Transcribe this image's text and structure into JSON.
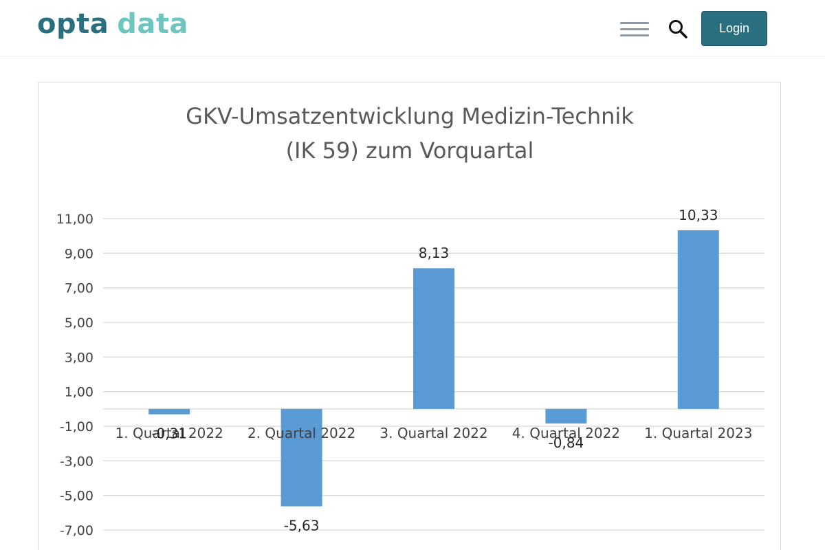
{
  "header": {
    "logo_word_1": "opta",
    "logo_word_2": "data",
    "login_label": "Login"
  },
  "icons": {
    "menu": "hamburger-menu-icon",
    "search": "search-icon"
  },
  "colors": {
    "brand_dark": "#2a6f7f",
    "brand_light": "#6cc6bf",
    "bar": "#5b9bd5"
  },
  "chart_data": {
    "type": "bar",
    "title": [
      "GKV-Umsatzentwicklung Medizin-Technik",
      "(IK 59) zum Vorquartal"
    ],
    "categories": [
      "1. Quartal 2022",
      "2. Quartal 2022",
      "3. Quartal 2022",
      "4. Quartal 2022",
      "1. Quartal 2023"
    ],
    "values": [
      -0.31,
      -5.63,
      8.13,
      -0.84,
      10.33
    ],
    "value_labels": [
      "-0,31",
      "-5,63",
      "8,13",
      "-0,84",
      "10,33"
    ],
    "yticks": [
      11,
      9,
      7,
      5,
      3,
      1,
      -1,
      -3,
      -5,
      -7
    ],
    "ytick_labels": [
      "11,00",
      "9,00",
      "7,00",
      "5,00",
      "3,00",
      "1,00",
      "-1,00",
      "-3,00",
      "-5,00",
      "-7,00"
    ],
    "ylim": [
      -7,
      11
    ],
    "grid": true,
    "legend": "none"
  }
}
